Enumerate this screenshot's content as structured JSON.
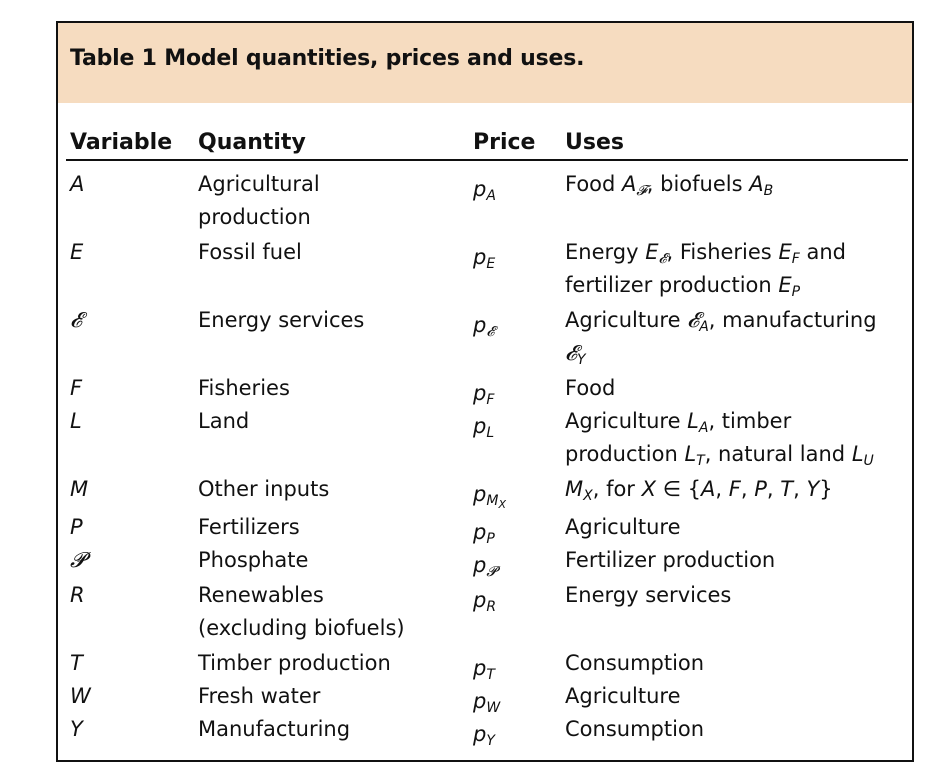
{
  "table": {
    "title": "Table 1 Model quantities, prices and uses.",
    "headers": {
      "variable": "Variable",
      "quantity": "Quantity",
      "price": "Price",
      "uses": "Uses"
    },
    "rows": [
      {
        "variable": "A",
        "quantity": [
          "Agricultural",
          "production"
        ],
        "price": "pA",
        "uses": [
          "Food A𝓕, biofuels AB"
        ]
      },
      {
        "variable": "E",
        "quantity": [
          "Fossil fuel"
        ],
        "price": "pE",
        "uses": [
          "Energy E𝓔, Fisheries EF and",
          "fertilizer production EP"
        ]
      },
      {
        "variable": "𝓔",
        "quantity": [
          "Energy services"
        ],
        "price": "p𝓔",
        "uses": [
          "Agriculture 𝓔A, manufacturing",
          "𝓔Y"
        ]
      },
      {
        "variable": "F",
        "quantity": [
          "Fisheries"
        ],
        "price": "pF",
        "uses": [
          "Food"
        ]
      },
      {
        "variable": "L",
        "quantity": [
          "Land"
        ],
        "price": "pL",
        "uses": [
          "Agriculture LA, timber",
          "production LT, natural land LU"
        ]
      },
      {
        "variable": "M",
        "quantity": [
          "Other inputs"
        ],
        "price": "pMX",
        "uses": [
          "MX, for X ∈ {A, F, P, T, Y}"
        ]
      },
      {
        "variable": "P",
        "quantity": [
          "Fertilizers"
        ],
        "price": "pP",
        "uses": [
          "Agriculture"
        ]
      },
      {
        "variable": "𝓟",
        "quantity": [
          "Phosphate"
        ],
        "price": "p𝓟",
        "uses": [
          "Fertilizer production"
        ]
      },
      {
        "variable": "R",
        "quantity": [
          "Renewables",
          "(excluding biofuels)"
        ],
        "price": "pR",
        "uses": [
          "Energy services"
        ]
      },
      {
        "variable": "T",
        "quantity": [
          "Timber production"
        ],
        "price": "pT",
        "uses": [
          "Consumption"
        ]
      },
      {
        "variable": "W",
        "quantity": [
          "Fresh water"
        ],
        "price": "pW",
        "uses": [
          "Agriculture"
        ]
      },
      {
        "variable": "Y",
        "quantity": [
          "Manufacturing"
        ],
        "price": "pY",
        "uses": [
          "Consumption"
        ]
      }
    ]
  },
  "colors": {
    "title_band": "#f6dcc0",
    "border": "#111111"
  }
}
